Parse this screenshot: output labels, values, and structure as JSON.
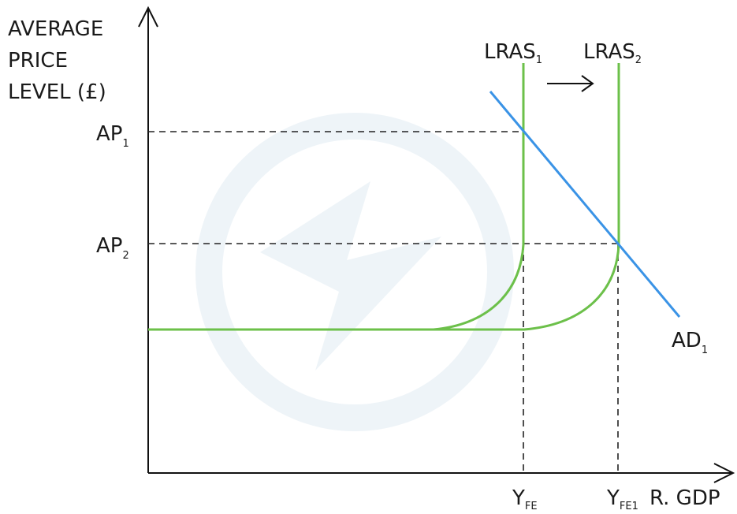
{
  "axes": {
    "y_label_lines": [
      "AVERAGE",
      "PRICE",
      "LEVEL (£)"
    ],
    "x_label": "R. GDP"
  },
  "price_levels": [
    {
      "base": "AP",
      "sub": "1"
    },
    {
      "base": "AP",
      "sub": "2"
    }
  ],
  "output_levels": [
    {
      "base": "Y",
      "sub": "FE"
    },
    {
      "base": "Y",
      "sub": "FE1"
    }
  ],
  "curves": {
    "lras1": {
      "base": "LRAS",
      "sub": "1"
    },
    "lras2": {
      "base": "LRAS",
      "sub": "2"
    },
    "ad1": {
      "base": "AD",
      "sub": "1"
    }
  },
  "colors": {
    "lras": "#6cc04a",
    "ad": "#3a93e6",
    "axis": "#111111",
    "guides": "#222222",
    "watermark": "#e9f1f6"
  },
  "shift_arrow_icon": "right-arrow-icon"
}
